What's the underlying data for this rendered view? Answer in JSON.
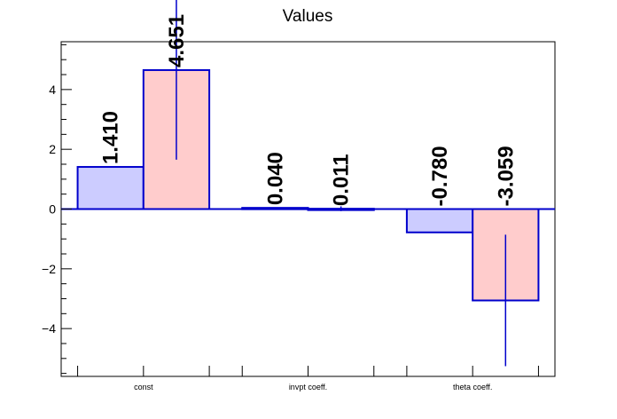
{
  "chart_data": {
    "type": "bar",
    "title": "Values",
    "categories": [
      "const",
      "invpt coeff.",
      "theta coeff."
    ],
    "ylim": [
      -5.6,
      5.6
    ],
    "yticks": [
      -4,
      -2,
      0,
      2,
      4
    ],
    "ytick_labels": [
      "−4",
      "−2",
      "0",
      "2",
      "4"
    ],
    "grid": false,
    "legend": "none",
    "series": [
      {
        "values": [
          1.41,
          0.04,
          -0.78
        ],
        "labels": [
          "1.410",
          "0.040",
          "-0.780"
        ],
        "errors": [
          0,
          0,
          0
        ],
        "fill": "#ccccff",
        "stroke": "#0000cc"
      },
      {
        "values": [
          4.651,
          0.011,
          -3.059
        ],
        "labels": [
          "4.651",
          "0.011",
          "-3.059"
        ],
        "errors": [
          3.0,
          0.08,
          2.2
        ],
        "fill": "#ffcccc",
        "stroke": "#0000cc"
      }
    ]
  }
}
